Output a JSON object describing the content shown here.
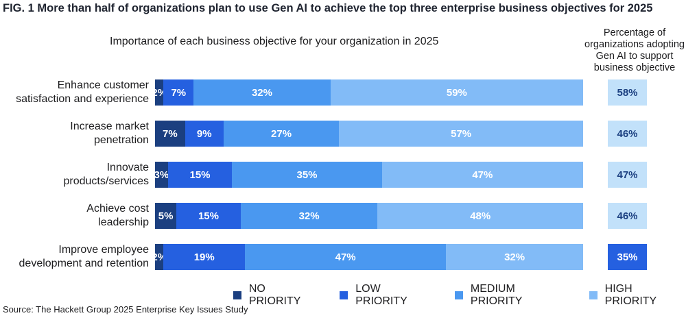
{
  "chart_data": {
    "type": "bar",
    "orientation": "horizontal-stacked",
    "title": "FIG. 1  More than half of organizations plan to use Gen AI to achieve the top three enterprise business objectives for 2025",
    "subtitle": "Importance of each business objective for your organization in 2025",
    "right_header": "Percentage of organizations adopting Gen AI to support business objective",
    "categories": [
      [
        "Enhance customer",
        "satisfaction and experience"
      ],
      [
        "Increase market",
        "penetration"
      ],
      [
        "Innovate",
        "products/services"
      ],
      [
        "Achieve cost",
        "leadership"
      ],
      [
        "Improve employee",
        "development and retention"
      ]
    ],
    "series": [
      {
        "name": "NO PRIORITY",
        "color": "#1b3f80",
        "values": [
          2,
          7,
          3,
          5,
          2
        ]
      },
      {
        "name": "LOW PRIORITY",
        "color": "#2560e0",
        "values": [
          7,
          9,
          15,
          15,
          19
        ]
      },
      {
        "name": "MEDIUM PRIORITY",
        "color": "#4a98f0",
        "values": [
          32,
          27,
          35,
          32,
          47
        ]
      },
      {
        "name": "HIGH PRIORITY",
        "color": "#82bbf7",
        "values": [
          59,
          57,
          47,
          48,
          32
        ]
      }
    ],
    "adoption": [
      58,
      46,
      47,
      46,
      35
    ],
    "adoption_colors": {
      "default_bg": "#c2e1fa",
      "default_text": "#1b3f80",
      "highlight_bg": "#2560e0",
      "highlight_text": "#ffffff"
    },
    "legend_position": "bottom",
    "source": "Source: The Hackett Group 2025 Enterprise Key Issues Study"
  }
}
